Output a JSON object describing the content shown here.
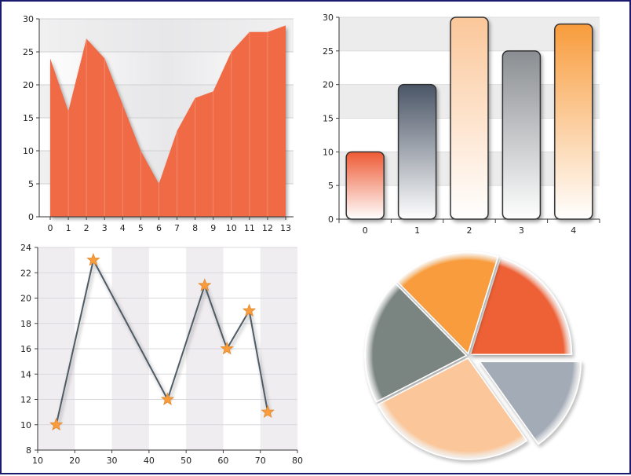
{
  "chart_data": [
    {
      "type": "area",
      "x": [
        0,
        1,
        2,
        3,
        4,
        5,
        6,
        7,
        8,
        9,
        10,
        11,
        12,
        13
      ],
      "values": [
        24,
        16,
        27,
        24,
        17,
        10,
        5,
        13,
        18,
        19,
        25,
        28,
        28,
        29
      ],
      "x_ticks": [
        "0",
        "1",
        "2",
        "3",
        "4",
        "5",
        "6",
        "7",
        "8",
        "9",
        "10",
        "11",
        "12",
        "13"
      ],
      "y_ticks": [
        "0",
        "5",
        "10",
        "15",
        "20",
        "25",
        "30"
      ],
      "ylim": [
        0,
        30
      ],
      "color": "#ef6a45",
      "grid": true
    },
    {
      "type": "bar",
      "categories": [
        "0",
        "1",
        "2",
        "3",
        "4"
      ],
      "values": [
        10,
        20,
        30,
        25,
        29
      ],
      "y_ticks": [
        "0",
        "5",
        "10",
        "15",
        "20",
        "25",
        "30"
      ],
      "ylim": [
        0,
        30
      ],
      "colors": [
        "#ee5a34",
        "#4a5566",
        "#fbc79a",
        "#8a8e92",
        "#f89c3c"
      ],
      "grid": true
    },
    {
      "type": "line",
      "x": [
        15,
        25,
        45,
        55,
        61,
        67,
        72
      ],
      "values": [
        10,
        23,
        12,
        21,
        16,
        19,
        11
      ],
      "x_ticks": [
        "10",
        "20",
        "30",
        "40",
        "50",
        "60",
        "70",
        "80"
      ],
      "y_ticks": [
        "8",
        "10",
        "12",
        "14",
        "16",
        "18",
        "20",
        "22",
        "24"
      ],
      "xlim": [
        10,
        80
      ],
      "ylim": [
        8,
        24
      ],
      "line_color": "#4f5b66",
      "marker": "star",
      "marker_color": "#f89c3c",
      "grid": true
    },
    {
      "type": "pie",
      "values": [
        20,
        17,
        20,
        27,
        15
      ],
      "colors": [
        "#ee6136",
        "#f89c3c",
        "#7a8480",
        "#fbc79a",
        "#a3abb6"
      ],
      "exploded": [
        false,
        false,
        false,
        false,
        true
      ]
    }
  ]
}
